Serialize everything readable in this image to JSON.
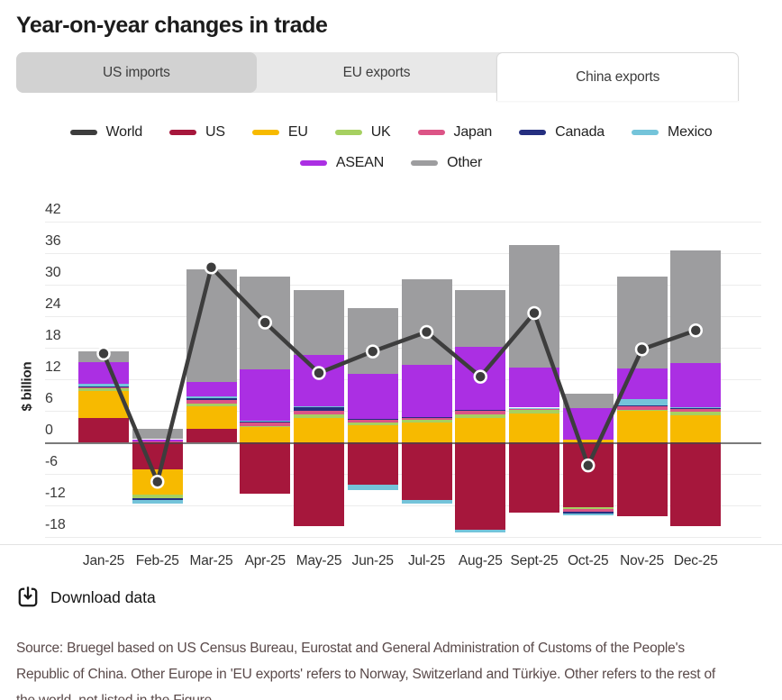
{
  "page": {
    "title": "Year-on-year changes in trade"
  },
  "tabs": [
    {
      "label": "US imports",
      "state": "inactive-gray"
    },
    {
      "label": "EU exports",
      "state": "inactive"
    },
    {
      "label": "China exports",
      "state": "active"
    }
  ],
  "download": {
    "label": "Download data"
  },
  "source": {
    "lines": [
      "Source: Bruegel based on US Census Bureau, Eurostat and General Administration of Customs of the People's",
      "Republic of China. Other Europe in 'EU exports' refers to Norway, Switzerland and Türkiye. Other refers to the rest of",
      "the world, not listed in the Figure."
    ]
  },
  "chart_data": {
    "type": "bar",
    "subtype": "stacked-columns-with-line",
    "title": "Year-on-year changes in trade",
    "ylabel": "$ billion",
    "ylim": [
      -18,
      42
    ],
    "yticks": [
      42,
      36,
      30,
      24,
      18,
      12,
      6,
      0,
      -6,
      -12,
      -18
    ],
    "grid": true,
    "legend_position": "top",
    "categories": [
      "Jan-25",
      "Feb-25",
      "Mar-25",
      "Apr-25",
      "May-25",
      "Jun-25",
      "Jul-25",
      "Aug-25",
      "Sept-25",
      "Oct-25",
      "Nov-25",
      "Dec-25"
    ],
    "series": [
      {
        "name": "US",
        "color": "#a6173c",
        "values": [
          4.7,
          -5.2,
          2.6,
          -9.8,
          -16.0,
          -8.1,
          -10.9,
          -16.6,
          -13.3,
          -12.4,
          -14.0,
          -15.9
        ]
      },
      {
        "name": "EU",
        "color": "#f7ba00",
        "values": [
          5.1,
          -4.8,
          4.3,
          2.9,
          4.6,
          3.3,
          3.8,
          4.6,
          5.5,
          0.5,
          6.0,
          5.1
        ]
      },
      {
        "name": "UK",
        "color": "#a6d061",
        "values": [
          0.5,
          -0.6,
          0.5,
          0.2,
          0.8,
          0.5,
          0.5,
          0.7,
          0.7,
          -0.3,
          0.2,
          0.8
        ]
      },
      {
        "name": "Japan",
        "color": "#dc5486",
        "values": [
          0.2,
          0.1,
          0.7,
          0.6,
          0.6,
          0.55,
          0.5,
          0.7,
          0.2,
          -0.5,
          0.6,
          0.6
        ]
      },
      {
        "name": "Canada",
        "color": "#252f80",
        "values": [
          0.2,
          -0.3,
          0.35,
          0.3,
          0.75,
          0.1,
          0.05,
          0.1,
          0.1,
          -0.3,
          0.3,
          0.1
        ]
      },
      {
        "name": "Mexico",
        "color": "#74c4da",
        "values": [
          0.4,
          -0.7,
          0.35,
          0.1,
          0.1,
          -1.0,
          -0.7,
          -0.5,
          0.1,
          -0.4,
          1.1,
          0.05
        ]
      },
      {
        "name": "ASEAN",
        "color": "#ab2fe3",
        "values": [
          4.2,
          0.5,
          2.7,
          9.8,
          9.7,
          8.6,
          9.9,
          12.0,
          7.7,
          6.0,
          5.9,
          8.5
        ]
      },
      {
        "name": "Other",
        "color": "#9d9d9f",
        "values": [
          2.0,
          1.9,
          21.5,
          17.6,
          12.45,
          12.55,
          16.25,
          10.9,
          23.2,
          2.8,
          17.5,
          21.35
        ]
      }
    ],
    "line_series": {
      "name": "World",
      "color": "#3d3d3d",
      "values": [
        16.9,
        -7.5,
        33.3,
        22.8,
        13.2,
        17.3,
        21.0,
        12.5,
        24.6,
        -4.4,
        17.7,
        21.3
      ]
    }
  }
}
